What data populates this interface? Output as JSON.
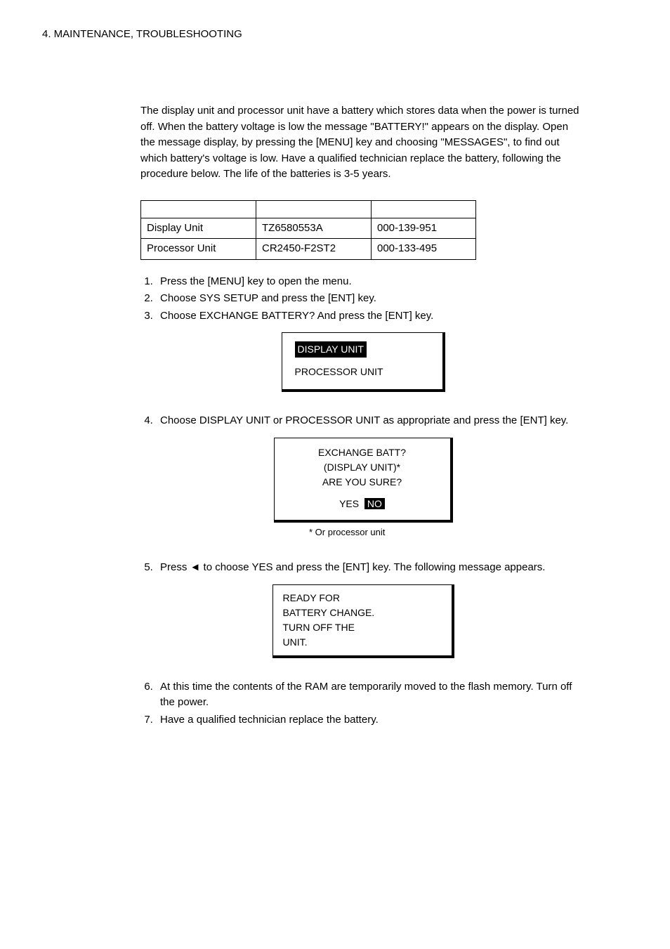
{
  "header": "4. MAINTENANCE, TROUBLESHOOTING",
  "intro": "The display unit and processor unit have a battery which stores data when the power is turned off. When the battery voltage is low the message \"BATTERY!\" appears on the display. Open the message display, by pressing the [MENU] key and choosing \"MESSAGES\", to find out which battery's voltage is low. Have a qualified technician replace the battery, following the procedure below. The life of the batteries is 3-5 years.",
  "table": {
    "rows": [
      {
        "c1": "Display Unit",
        "c2": "TZ6580553A",
        "c3": "000-139-951"
      },
      {
        "c1": "Processor Unit",
        "c2": "CR2450-F2ST2",
        "c3": "000-133-495"
      }
    ]
  },
  "steps1": [
    "Press the [MENU] key to open the menu.",
    "Choose SYS SETUP and press the [ENT] key.",
    "Choose EXCHANGE BATTERY? And press the [ENT] key."
  ],
  "box1": {
    "line1": "DISPLAY UNIT",
    "line2": "PROCESSOR UNIT"
  },
  "step4": "Choose DISPLAY UNIT or PROCESSOR UNIT as appropriate and press the [ENT] key.",
  "box2": {
    "line1": "EXCHANGE BATT?",
    "line2": "(DISPLAY UNIT)*",
    "line3": "ARE YOU SURE?",
    "yes": "YES",
    "no": "NO"
  },
  "caption1": "* Or processor unit",
  "step5": "Press ◄ to choose YES and press the [ENT] key. The following message appears.",
  "box3": {
    "l1": "READY FOR",
    "l2": "BATTERY CHANGE.",
    "l3": "TURN OFF THE",
    "l4": "UNIT."
  },
  "step6": "At this time the contents of the RAM are temporarily moved to the flash memory. Turn off the power.",
  "step7": "Have a qualified technician replace the battery."
}
